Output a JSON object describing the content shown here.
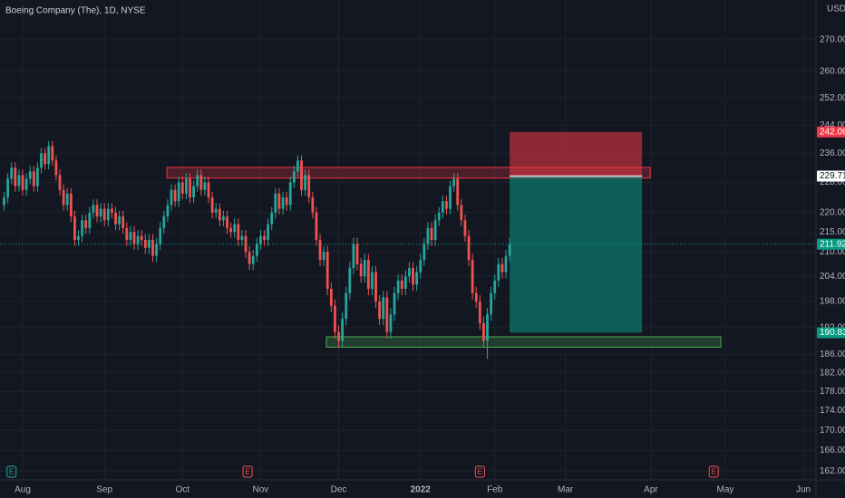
{
  "chart_data": {
    "type": "candlestick",
    "title": "Boeing Company (The), 1D, NYSE",
    "currency": "USD",
    "log_scale": true,
    "grid": true,
    "xlim": [
      -1.1,
      218.4
    ],
    "xticks": [
      {
        "value": 5,
        "label": "Aug"
      },
      {
        "value": 27,
        "label": "Sep"
      },
      {
        "value": 48,
        "label": "Oct"
      },
      {
        "value": 69,
        "label": "Nov"
      },
      {
        "value": 90,
        "label": "Dec"
      },
      {
        "value": 112,
        "label": "2022"
      },
      {
        "value": 132,
        "label": "Feb"
      },
      {
        "value": 151,
        "label": "Mar"
      },
      {
        "value": 174,
        "label": "Apr"
      },
      {
        "value": 194,
        "label": "May"
      },
      {
        "value": 215,
        "label": "Jun"
      }
    ],
    "ylim": [
      160.3,
      283.0
    ],
    "yticks": [
      {
        "value": 162,
        "label": "162.00"
      },
      {
        "value": 166,
        "label": "166.00"
      },
      {
        "value": 170,
        "label": "170.00"
      },
      {
        "value": 174,
        "label": "174.00"
      },
      {
        "value": 178,
        "label": "178.00"
      },
      {
        "value": 182,
        "label": "182.00"
      },
      {
        "value": 186,
        "label": "186.00"
      },
      {
        "value": 192,
        "label": "192.00"
      },
      {
        "value": 198,
        "label": "198.00"
      },
      {
        "value": 204,
        "label": "204.00"
      },
      {
        "value": 210,
        "label": "210.00"
      },
      {
        "value": 215,
        "label": "215.00"
      },
      {
        "value": 220,
        "label": "220.00"
      },
      {
        "value": 228,
        "label": "228.00"
      },
      {
        "value": 236,
        "label": "236.00"
      },
      {
        "value": 244,
        "label": "244.00"
      },
      {
        "value": 252,
        "label": "252.00"
      },
      {
        "value": 260,
        "label": "260.00"
      },
      {
        "value": 270,
        "label": "270.00"
      }
    ],
    "series": [
      {
        "up_color": "#26a69a",
        "down_color": "#ef5350",
        "open": [
          222,
          224,
          229,
          232,
          227,
          230,
          226,
          229,
          231,
          227,
          232,
          236,
          233,
          238,
          234,
          230,
          226,
          222,
          225,
          219,
          213,
          214,
          218,
          216,
          220,
          222,
          219,
          221,
          218,
          221,
          220,
          217,
          219,
          216,
          213,
          215,
          212,
          214,
          213,
          211,
          213,
          209,
          212,
          216,
          219,
          222,
          226,
          223,
          228,
          225,
          229,
          224,
          227,
          230,
          226,
          228,
          224,
          220,
          221,
          218,
          219,
          216,
          215,
          217,
          213,
          214,
          210,
          207,
          209,
          212,
          214,
          213,
          217,
          220,
          225,
          221,
          224,
          222,
          228,
          231,
          234,
          226,
          230,
          224,
          220,
          213,
          208,
          210,
          201,
          197,
          191,
          189,
          194,
          200,
          206,
          212,
          207,
          204,
          208,
          201,
          205,
          198,
          194,
          199,
          191,
          195,
          200,
          203,
          201,
          204,
          206,
          202,
          205,
          208,
          212,
          216,
          213,
          218,
          220,
          223,
          221,
          227,
          229,
          222,
          218,
          214,
          208,
          200,
          198,
          193,
          189,
          195,
          200,
          203,
          207,
          205,
          209
        ],
        "high": [
          225.5,
          230.5,
          233.5,
          233.5,
          231.5,
          231.5,
          230.5,
          232.5,
          232.5,
          233.5,
          237.5,
          237.5,
          239.5,
          239.5,
          235.5,
          231.5,
          227.5,
          226.5,
          226.5,
          220.5,
          215.5,
          219.5,
          219.5,
          221.5,
          223.5,
          223.5,
          222.5,
          222.5,
          222.5,
          222.5,
          221.5,
          220.5,
          220.5,
          217.5,
          216.5,
          216.5,
          215.5,
          215.5,
          214.5,
          214.5,
          214.5,
          213.5,
          217.5,
          220.5,
          223.5,
          227.5,
          227.5,
          229.5,
          229.5,
          230.5,
          230.5,
          228.5,
          231.5,
          231.5,
          229.5,
          229.5,
          225.5,
          222.5,
          222.5,
          220.5,
          220.5,
          217.5,
          218.5,
          218.5,
          215.5,
          215.5,
          211.5,
          210.5,
          213.5,
          215.5,
          215.5,
          218.5,
          221.5,
          226.5,
          226.5,
          225.5,
          225.5,
          229.5,
          232.5,
          235.5,
          235.5,
          231.5,
          231.5,
          225.5,
          221.5,
          214.5,
          211.5,
          211.5,
          202.5,
          198.5,
          192.5,
          195.5,
          201.5,
          207.5,
          213.5,
          213.5,
          208.5,
          209.5,
          209.5,
          206.5,
          206.5,
          199.5,
          200.5,
          200.5,
          196.5,
          201.5,
          204.5,
          204.5,
          205.5,
          207.5,
          207.5,
          206.5,
          209.5,
          213.5,
          217.5,
          217.5,
          219.5,
          221.5,
          224.5,
          224.5,
          228.5,
          230.5,
          230.5,
          223.5,
          219.5,
          215.5,
          209.5,
          201.5,
          199.5,
          194.5,
          196.5,
          201.5,
          204.5,
          208.5,
          208.5,
          210.5,
          213.5
        ],
        "low": [
          220.5,
          222.5,
          227.5,
          225.5,
          225.5,
          224.5,
          224.5,
          227.5,
          225.5,
          225.5,
          230.5,
          231.5,
          231.5,
          232.5,
          228.5,
          224.5,
          220.5,
          220.5,
          217.5,
          211.5,
          211.5,
          212.5,
          214.5,
          214.5,
          218.5,
          217.5,
          217.5,
          216.5,
          216.5,
          218.5,
          215.5,
          215.5,
          214.5,
          211.5,
          211.5,
          210.5,
          210.5,
          211.5,
          209.5,
          209.5,
          207.5,
          207.5,
          210.5,
          214.5,
          217.5,
          220.5,
          221.5,
          221.5,
          223.5,
          223.5,
          222.5,
          222.5,
          225.5,
          224.5,
          224.5,
          222.5,
          218.5,
          218.5,
          216.5,
          216.5,
          214.5,
          213.5,
          213.5,
          211.5,
          211.5,
          208.5,
          205.5,
          205.5,
          207.5,
          210.5,
          211.5,
          211.5,
          215.5,
          218.5,
          219.5,
          219.5,
          220.5,
          220.5,
          226.5,
          229.5,
          224.5,
          224.5,
          222.5,
          218.5,
          211.5,
          206.5,
          206.5,
          199.5,
          195.5,
          189.5,
          187.5,
          187.5,
          192.5,
          198.5,
          204.5,
          205.5,
          202.5,
          202.5,
          199.5,
          199.5,
          196.5,
          192.5,
          192.5,
          189.5,
          189.5,
          193.5,
          198.5,
          199.5,
          199.5,
          202.5,
          200.5,
          200.5,
          203.5,
          206.5,
          210.5,
          211.5,
          211.5,
          216.5,
          218.5,
          219.5,
          219.5,
          225.5,
          220.5,
          216.5,
          212.5,
          206.5,
          198.5,
          196.5,
          191.5,
          187.5,
          185,
          193.5,
          198.5,
          201.5,
          203.5,
          203.5,
          207.5
        ],
        "close": [
          224,
          229,
          232,
          227,
          230,
          226,
          229,
          231,
          227,
          232,
          236,
          233,
          238,
          234,
          230,
          226,
          222,
          225,
          219,
          213,
          214,
          218,
          216,
          220,
          222,
          219,
          221,
          218,
          221,
          220,
          217,
          219,
          216,
          213,
          215,
          212,
          214,
          213,
          211,
          213,
          209,
          212,
          216,
          219,
          222,
          226,
          223,
          228,
          225,
          229,
          224,
          227,
          230,
          226,
          228,
          224,
          220,
          221,
          218,
          219,
          216,
          215,
          217,
          213,
          214,
          210,
          207,
          209,
          212,
          214,
          213,
          217,
          220,
          225,
          221,
          224,
          222,
          228,
          231,
          234,
          226,
          230,
          224,
          220,
          213,
          208,
          210,
          201,
          197,
          191,
          189,
          194,
          200,
          206,
          212,
          207,
          204,
          208,
          201,
          205,
          198,
          194,
          199,
          191,
          195,
          200,
          203,
          201,
          204,
          206,
          202,
          205,
          208,
          212,
          216,
          213,
          218,
          220,
          223,
          221,
          227,
          229,
          222,
          218,
          214,
          208,
          200,
          198,
          193,
          189,
          195,
          200,
          203,
          207,
          205,
          209,
          211.92
        ]
      }
    ],
    "zones": [
      {
        "from": 229.2,
        "to": 232.1,
        "x0": 43.8,
        "x1": 173.8,
        "color": "#f23645"
      },
      {
        "from": 187.6,
        "to": 189.9,
        "x0": 86.7,
        "x1": 192.8,
        "color": "#4caf50"
      }
    ],
    "position": {
      "x0": 136,
      "x1": 171.6,
      "stop": 242.06,
      "entry": 229.71,
      "target": 190.83,
      "stop_color": "#f23645",
      "target_color": "#089981"
    },
    "price_labels": [
      {
        "value": 242.06,
        "color": "#f23645"
      },
      {
        "value": 229.71,
        "color": "#ffffff"
      },
      {
        "value": 211.92,
        "color": "#089981"
      },
      {
        "value": 190.83,
        "color": "#089981"
      }
    ],
    "current_price": 211.92,
    "earnings": [
      {
        "x": 2,
        "label": "E",
        "color": "#26a69a"
      },
      {
        "x": 65.5,
        "label": "E",
        "color": "#ef5350"
      },
      {
        "x": 128,
        "label": "E",
        "color": "#ef5350"
      },
      {
        "x": 190.9,
        "label": "E",
        "color": "#ef5350"
      }
    ]
  }
}
